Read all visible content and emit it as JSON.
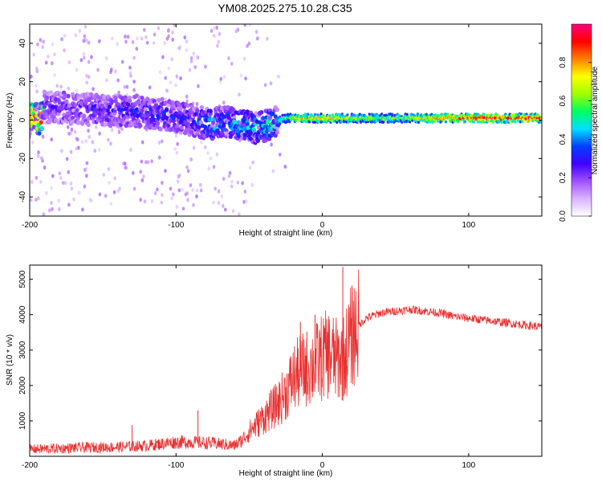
{
  "title": "YM08.2025.275.10.28.C35",
  "chart_data": [
    {
      "type": "heatmap",
      "title": "YM08.2025.275.10.28.C35",
      "xlabel": "Height of straight line (km)",
      "ylabel": "Frequency (Hz)",
      "xlim": [
        -200,
        150
      ],
      "ylim": [
        -50,
        50
      ],
      "xticks": [
        -200,
        -100,
        0,
        100
      ],
      "yticks": [
        -40,
        -20,
        0,
        20,
        40
      ],
      "colorbar": {
        "label": "Normalized spectral amplitude",
        "range": [
          0.0,
          1.0
        ],
        "ticks": [
          "0.0",
          "0.2",
          "0.4",
          "0.6",
          "0.8"
        ],
        "colors": [
          "#ffffff",
          "#d9b3ff",
          "#a050ff",
          "#4000ff",
          "#0040ff",
          "#00e0ff",
          "#00ff60",
          "#a0ff00",
          "#ffff00",
          "#ff8000",
          "#ff0000",
          "#ff0080"
        ]
      },
      "ridge": [
        {
          "x": -190,
          "y": 7,
          "amp": 0.25
        },
        {
          "x": -170,
          "y": 6,
          "amp": 0.25
        },
        {
          "x": -150,
          "y": 5,
          "amp": 0.28
        },
        {
          "x": -130,
          "y": 5,
          "amp": 0.3
        },
        {
          "x": -110,
          "y": 3,
          "amp": 0.32
        },
        {
          "x": -95,
          "y": 1,
          "amp": 0.3
        },
        {
          "x": -85,
          "y": -1,
          "amp": 0.35
        },
        {
          "x": -75,
          "y": -2,
          "amp": 0.45
        },
        {
          "x": -65,
          "y": -1,
          "amp": 0.42
        },
        {
          "x": -55,
          "y": -3,
          "amp": 0.45
        },
        {
          "x": -45,
          "y": -4,
          "amp": 0.48
        },
        {
          "x": -35,
          "y": -2,
          "amp": 0.5
        },
        {
          "x": -25,
          "y": 1,
          "amp": 0.55
        },
        {
          "x": -15,
          "y": 1,
          "amp": 0.75
        },
        {
          "x": 0,
          "y": 1,
          "amp": 0.8
        },
        {
          "x": 25,
          "y": 1,
          "amp": 0.65
        },
        {
          "x": 50,
          "y": 1,
          "amp": 0.6
        },
        {
          "x": 75,
          "y": 1,
          "amp": 0.8
        },
        {
          "x": 100,
          "y": 1,
          "amp": 0.88
        },
        {
          "x": 125,
          "y": 1,
          "amp": 0.9
        },
        {
          "x": 150,
          "y": 1,
          "amp": 0.9
        }
      ]
    },
    {
      "type": "line",
      "xlabel": "Height of straight line (km)",
      "ylabel": "SNR (10 * v/v)",
      "xlim": [
        -200,
        150
      ],
      "ylim": [
        0,
        5400
      ],
      "xticks": [
        -200,
        -100,
        0,
        100
      ],
      "yticks": [
        1000,
        2000,
        3000,
        4000,
        5000
      ],
      "color": "#e83030",
      "series": [
        {
          "name": "SNR",
          "x": [
            -200,
            -180,
            -160,
            -140,
            -120,
            -100,
            -90,
            -80,
            -70,
            -60,
            -55,
            -50,
            -45,
            -40,
            -35,
            -30,
            -25,
            -20,
            -15,
            -10,
            -5,
            0,
            5,
            10,
            15,
            20,
            25,
            30,
            40,
            50,
            60,
            70,
            80,
            90,
            100,
            110,
            120,
            130,
            140,
            150
          ],
          "values": [
            200,
            220,
            250,
            260,
            300,
            400,
            400,
            380,
            350,
            300,
            450,
            700,
            900,
            1100,
            1300,
            1500,
            1800,
            2200,
            2400,
            2500,
            2600,
            2800,
            2900,
            2700,
            2800,
            3400,
            3700,
            3900,
            4050,
            4100,
            4150,
            4100,
            4050,
            3950,
            3900,
            3850,
            3800,
            3750,
            3700,
            3650
          ]
        }
      ],
      "spikes": [
        {
          "x": -130,
          "value": 880
        },
        {
          "x": -85,
          "value": 1300
        },
        {
          "x": -15,
          "value": 3800
        },
        {
          "x": -5,
          "value": 4000
        },
        {
          "x": 14,
          "value": 5350
        },
        {
          "x": 20,
          "value": 3900
        }
      ]
    }
  ]
}
